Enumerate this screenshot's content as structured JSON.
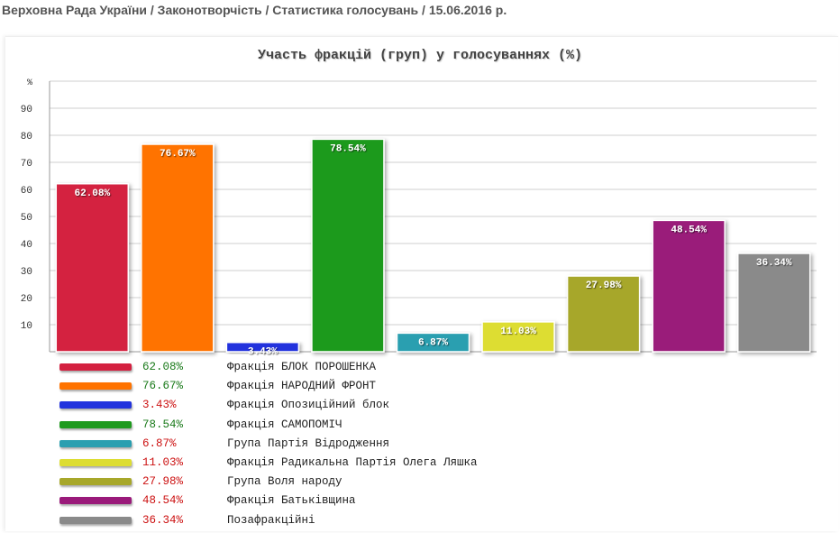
{
  "breadcrumb": "Верховна Рада України / Законотворчість / Статистика голосувань / 15.06.2016 р.",
  "chart_data": {
    "type": "bar",
    "title": "Участь фракцій (груп) у голосуваннях (%)",
    "ylabel": "%",
    "ylim": [
      0,
      100
    ],
    "yticks": [
      "10",
      "20",
      "30",
      "40",
      "50",
      "60",
      "70",
      "80",
      "90"
    ],
    "grid": true,
    "legend_position": "bottom",
    "bars": [
      {
        "name": "Фракція БЛОК ПОРОШЕНКА",
        "value": 62.08,
        "label": "62.08%",
        "color": "#d42040",
        "value_color": "#1a7a1a"
      },
      {
        "name": "Фракція НАРОДНИЙ ФРОНТ",
        "value": 76.67,
        "label": "76.67%",
        "color": "#ff7300",
        "value_color": "#1a7a1a"
      },
      {
        "name": "Фракція Опозиційний блок",
        "value": 3.43,
        "label": "3.43%",
        "color": "#2233dd",
        "value_color": "#cc1111"
      },
      {
        "name": "Фракція САМОПОМІЧ",
        "value": 78.54,
        "label": "78.54%",
        "color": "#1e9a1e",
        "value_color": "#1a7a1a"
      },
      {
        "name": "Група Партія Відродження",
        "value": 6.87,
        "label": "6.87%",
        "color": "#2a9fb0",
        "value_color": "#cc1111"
      },
      {
        "name": "Фракція Радикальна Партія Олега Ляшка",
        "value": 11.03,
        "label": "11.03%",
        "color": "#dddd33",
        "value_color": "#cc1111"
      },
      {
        "name": "Група Воля народу",
        "value": 27.98,
        "label": "27.98%",
        "color": "#a7a72a",
        "value_color": "#cc1111"
      },
      {
        "name": "Фракція Батьківщина",
        "value": 48.54,
        "label": "48.54%",
        "color": "#9a1a7a",
        "value_color": "#cc1111"
      },
      {
        "name": "Позафракційні",
        "value": 36.34,
        "label": "36.34%",
        "color": "#8a8a8a",
        "value_color": "#cc1111"
      }
    ]
  }
}
